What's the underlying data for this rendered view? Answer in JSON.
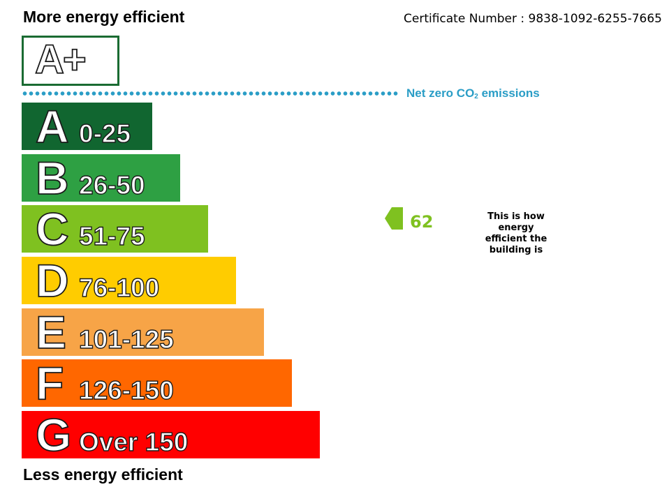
{
  "header": {
    "top_label": "More energy efficient",
    "bottom_label": "Less energy efficient",
    "certificate": "Certificate Number : 9838-1092-6255-7665"
  },
  "aplus": {
    "label": "A+",
    "color": "#1a6b32"
  },
  "net_zero": {
    "prefix": "Net zero CO",
    "subscript": "2",
    "suffix": " emissions",
    "color": "#2a9dc6"
  },
  "rating": {
    "value": "62",
    "band": "C",
    "color": "#7fc120",
    "caption": "This is how energy efficient the building is"
  },
  "chart_data": {
    "type": "bar",
    "categories": [
      "A",
      "B",
      "C",
      "D",
      "E",
      "F",
      "G"
    ],
    "series": [
      {
        "labels": [
          "0-25",
          "26-50",
          "51-75",
          "76-100",
          "101-125",
          "126-150",
          "Over 150"
        ],
        "colors": [
          "#116630",
          "#2ea043",
          "#7fc120",
          "#ffcc00",
          "#f7a447",
          "#ff6700",
          "#ff0000"
        ]
      }
    ],
    "current_rating": 62
  }
}
